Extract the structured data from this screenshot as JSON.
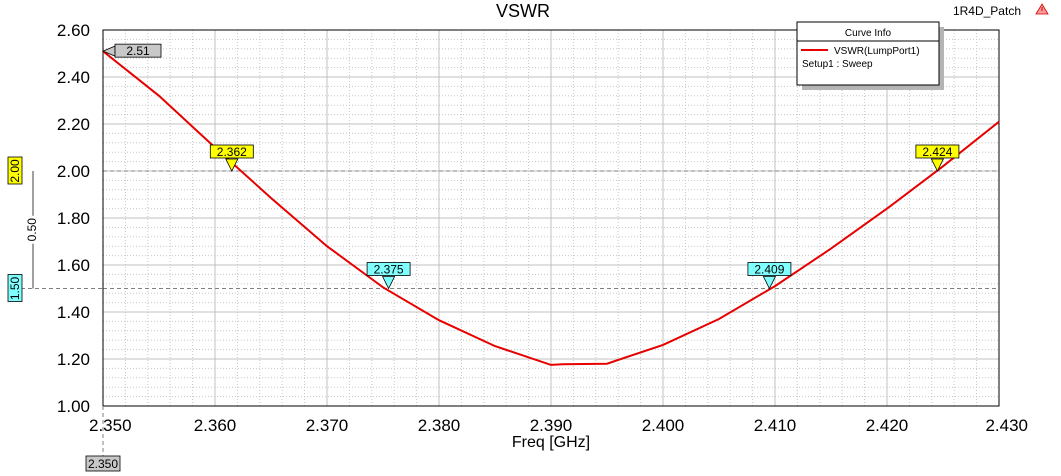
{
  "design_name": "1R4D_Patch",
  "chart_data": {
    "type": "line",
    "title": "VSWR",
    "xlabel": "Freq [GHz]",
    "ylabel": "",
    "xlim": [
      2.35,
      2.43
    ],
    "ylim": [
      1.0,
      2.6
    ],
    "x_ticks": [
      "2.350",
      "2.360",
      "2.370",
      "2.380",
      "2.390",
      "2.400",
      "2.410",
      "2.420",
      "2.430"
    ],
    "y_ticks": [
      "1.00",
      "1.20",
      "1.40",
      "1.60",
      "1.80",
      "2.00",
      "2.20",
      "2.40",
      "2.60"
    ],
    "grid": true,
    "series": [
      {
        "name": "VSWR(LumpPort1)",
        "color": "#e60000",
        "x": [
          2.35,
          2.355,
          2.36,
          2.365,
          2.37,
          2.375,
          2.38,
          2.385,
          2.39,
          2.391,
          2.395,
          2.4,
          2.405,
          2.41,
          2.415,
          2.42,
          2.425,
          2.43
        ],
        "y": [
          2.51,
          2.32,
          2.1,
          1.885,
          1.68,
          1.505,
          1.365,
          1.255,
          1.175,
          1.178,
          1.18,
          1.26,
          1.37,
          1.51,
          1.67,
          1.84,
          2.02,
          2.21
        ]
      }
    ],
    "legend": {
      "title": "Curve Info",
      "entries": [
        "VSWR(LumpPort1)"
      ],
      "sub": "Setup1 : Sweep",
      "position": "top-right"
    },
    "markers": [
      {
        "label": "2.51",
        "x": 2.35,
        "y": 2.51,
        "color": "#c8c8c8",
        "side": "right"
      },
      {
        "label": "2.362",
        "x": 2.3615,
        "y": 2.0,
        "color": "#ffff00",
        "side": "top"
      },
      {
        "label": "2.375",
        "x": 2.3755,
        "y": 1.5,
        "color": "#80ffff",
        "side": "top"
      },
      {
        "label": "2.409",
        "x": 2.4095,
        "y": 1.5,
        "color": "#80ffff",
        "side": "top"
      },
      {
        "label": "2.424",
        "x": 2.4245,
        "y": 2.0,
        "color": "#ffff00",
        "side": "top"
      }
    ],
    "reference_lines": [
      2.0,
      1.5
    ],
    "y_markers": [
      {
        "label": "2.00",
        "value": 2.0,
        "color": "#ffff00"
      },
      {
        "label": "1.50",
        "value": 1.5,
        "color": "#80ffff"
      }
    ],
    "delta_label": "0.50",
    "x_marker": {
      "label": "2.350",
      "value": 2.35,
      "color": "#c8c8c8"
    }
  }
}
